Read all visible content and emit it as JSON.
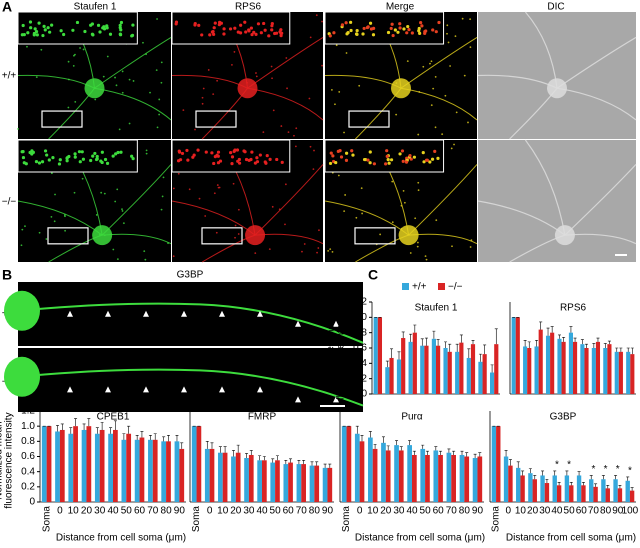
{
  "figure": {
    "panel_a": {
      "label": "A",
      "columns": [
        "Staufen 1",
        "RPS6",
        "Merge",
        "DIC"
      ],
      "rows": [
        "+/+",
        "−/−"
      ]
    },
    "panel_b": {
      "label": "B",
      "title": "G3BP",
      "rows": [
        "+/+",
        "−/−"
      ]
    },
    "panel_c": {
      "label": "C"
    }
  },
  "chart_data": [
    {
      "type": "bar",
      "title": "Staufen 1",
      "ylabel": [
        "Normalized mean",
        "fluorescence intensity"
      ],
      "categories": [
        null,
        null,
        null,
        null,
        null,
        null,
        null,
        null,
        null,
        null,
        null
      ],
      "ylim": [
        0,
        1.2
      ],
      "yticks": [
        0,
        0.2,
        0.4,
        0.6,
        0.8,
        {
          "value": 1,
          "label": "1.0"
        },
        1.2
      ],
      "series": [
        {
          "name": "+/+",
          "color": "#35a8dc",
          "values": [
            1,
            0.35,
            0.45,
            0.68,
            0.63,
            0.72,
            0.6,
            0.55,
            0.47,
            0.42,
            0.28
          ],
          "errors": [
            0,
            0.08,
            0.1,
            0.1,
            0.09,
            0.1,
            0.08,
            0.1,
            0.12,
            0.1,
            0.1
          ]
        },
        {
          "name": "−/−",
          "color": "#d92424",
          "values": [
            1,
            0.47,
            0.73,
            0.8,
            0.63,
            0.63,
            0.55,
            0.67,
            0.65,
            0.52,
            0.65
          ],
          "errors": [
            0,
            0.12,
            0.08,
            0.1,
            0.1,
            0.08,
            0.1,
            0.1,
            0.05,
            0.12,
            0.2
          ]
        }
      ]
    },
    {
      "type": "bar",
      "title": "RPS6",
      "categories": [
        null,
        null,
        null,
        null,
        null,
        null,
        null,
        null,
        null,
        null,
        null
      ],
      "ylim": [
        0,
        1.2
      ],
      "series": [
        {
          "color": "#35a8dc",
          "values": [
            1,
            0.62,
            0.62,
            0.76,
            0.72,
            0.8,
            0.65,
            0.6,
            0.6,
            0.55,
            0.55
          ],
          "errors": [
            0,
            0.08,
            0.08,
            0.1,
            0.05,
            0.08,
            0.06,
            0.06,
            0.06,
            0.05,
            0.05
          ]
        },
        {
          "color": "#d92424",
          "values": [
            1,
            0.6,
            0.84,
            0.8,
            0.68,
            0.68,
            0.6,
            0.68,
            0.65,
            0.55,
            0.52
          ],
          "errors": [
            0,
            0.08,
            0.1,
            0.08,
            0.06,
            0.05,
            0.05,
            0.05,
            0.04,
            0.05,
            0.08
          ]
        }
      ]
    },
    {
      "type": "bar",
      "title": "CPEB1",
      "ylabel": [
        "Normalized mean",
        "fluorescence intensity"
      ],
      "xlabel": "Distance from cell soma (μm)",
      "categories": [
        "Soma",
        "0",
        "10",
        "20",
        "30",
        "40",
        "50",
        "60",
        "70",
        "80",
        "90"
      ],
      "ylim": [
        0,
        1.2
      ],
      "yticks": [
        0,
        0.2,
        0.4,
        0.6,
        0.8,
        {
          "value": 1,
          "label": "1.0"
        },
        1.2
      ],
      "series": [
        {
          "color": "#35a8dc",
          "values": [
            1,
            0.93,
            0.9,
            0.95,
            0.9,
            0.9,
            0.82,
            0.82,
            0.82,
            0.8,
            0.8
          ],
          "errors": [
            0,
            0.08,
            0.08,
            0.08,
            0.08,
            0.08,
            0.08,
            0.06,
            0.06,
            0.06,
            0.08
          ]
        },
        {
          "color": "#d92424",
          "values": [
            1,
            0.95,
            1,
            1,
            0.95,
            0.95,
            0.9,
            0.85,
            0.82,
            0.8,
            0.7
          ],
          "errors": [
            0,
            0.08,
            0.1,
            0.1,
            0.1,
            0.12,
            0.1,
            0.08,
            0.08,
            0.08,
            0.08
          ]
        }
      ]
    },
    {
      "type": "bar",
      "title": "FMRP",
      "categories": [
        "Soma",
        "0",
        "10",
        "20",
        "30",
        "40",
        "50",
        "60",
        "70",
        "80",
        "90"
      ],
      "ylim": [
        0,
        1.2
      ],
      "series": [
        {
          "color": "#35a8dc",
          "values": [
            1,
            0.7,
            0.65,
            0.6,
            0.58,
            0.55,
            0.52,
            0.5,
            0.5,
            0.48,
            0.45
          ],
          "errors": [
            0,
            0.1,
            0.08,
            0.08,
            0.06,
            0.06,
            0.05,
            0.05,
            0.05,
            0.05,
            0.05
          ]
        },
        {
          "color": "#d92424",
          "values": [
            1,
            0.7,
            0.65,
            0.65,
            0.62,
            0.55,
            0.55,
            0.52,
            0.5,
            0.48,
            0.45
          ],
          "errors": [
            0,
            0.08,
            0.08,
            0.1,
            0.06,
            0.05,
            0.06,
            0.05,
            0.05,
            0.05,
            0.05
          ]
        }
      ]
    },
    {
      "type": "bar",
      "title": "Purα",
      "xlabel": "Distance from cell soma (μm)",
      "categories": [
        "Soma",
        "0",
        "10",
        "20",
        "30",
        "40",
        "50",
        "60",
        "70",
        "80",
        "90"
      ],
      "ylim": [
        0,
        1.2
      ],
      "series": [
        {
          "color": "#35a8dc",
          "values": [
            1,
            0.9,
            0.85,
            0.78,
            0.75,
            0.75,
            0.7,
            0.68,
            0.65,
            0.62,
            0.58
          ],
          "errors": [
            0,
            0.1,
            0.08,
            0.08,
            0.06,
            0.06,
            0.05,
            0.05,
            0.05,
            0.05,
            0.05
          ]
        },
        {
          "color": "#d92424",
          "values": [
            1,
            0.8,
            0.7,
            0.68,
            0.68,
            0.62,
            0.62,
            0.62,
            0.62,
            0.6,
            0.6
          ],
          "errors": [
            0,
            0.08,
            0.06,
            0.06,
            0.05,
            0.05,
            0.05,
            0.05,
            0.05,
            0.05,
            0.05
          ]
        }
      ]
    },
    {
      "type": "bar",
      "title": "G3BP",
      "xlabel": "Distance from cell soma (μm)",
      "categories": [
        "Soma",
        "0",
        "10",
        "20",
        "30",
        "40",
        "50",
        "60",
        "70",
        "80",
        "90",
        "100"
      ],
      "stars": [
        null,
        null,
        null,
        null,
        null,
        "*",
        "*",
        null,
        "*",
        "*",
        "*",
        "*"
      ],
      "ylim": [
        0,
        1.2
      ],
      "series": [
        {
          "color": "#35a8dc",
          "values": [
            1,
            0.6,
            0.45,
            0.38,
            0.35,
            0.35,
            0.35,
            0.35,
            0.3,
            0.3,
            0.3,
            0.28
          ],
          "errors": [
            0,
            0.08,
            0.08,
            0.06,
            0.06,
            0.06,
            0.06,
            0.05,
            0.05,
            0.05,
            0.05,
            0.05
          ]
        },
        {
          "color": "#d92424",
          "values": [
            1,
            0.48,
            0.35,
            0.3,
            0.25,
            0.22,
            0.22,
            0.22,
            0.2,
            0.18,
            0.18,
            0.15
          ],
          "errors": [
            0,
            0.08,
            0.06,
            0.05,
            0.05,
            0.04,
            0.04,
            0.04,
            0.04,
            0.04,
            0.04,
            0.04
          ]
        }
      ]
    }
  ]
}
